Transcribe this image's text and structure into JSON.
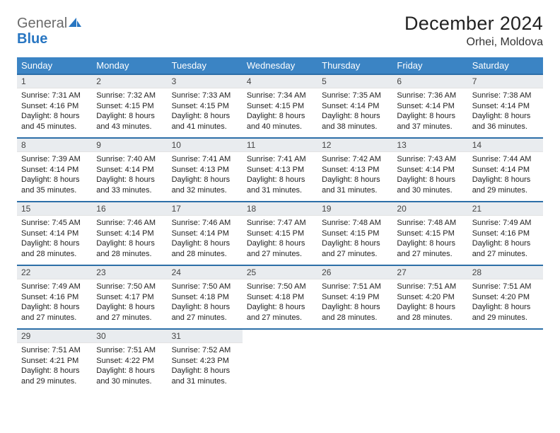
{
  "brand": {
    "line1": "General",
    "line2": "Blue"
  },
  "title": "December 2024",
  "location": "Orhei, Moldova",
  "columns": [
    "Sunday",
    "Monday",
    "Tuesday",
    "Wednesday",
    "Thursday",
    "Friday",
    "Saturday"
  ],
  "colors": {
    "header_bg": "#3b84c4",
    "header_border": "#2d6fa8",
    "daynum_bg": "#e9ecef",
    "brand_gray": "#6b6b6b",
    "brand_blue": "#2876c2"
  },
  "days": [
    {
      "n": 1,
      "sunrise": "7:31 AM",
      "sunset": "4:16 PM",
      "daylight": "8 hours and 45 minutes."
    },
    {
      "n": 2,
      "sunrise": "7:32 AM",
      "sunset": "4:15 PM",
      "daylight": "8 hours and 43 minutes."
    },
    {
      "n": 3,
      "sunrise": "7:33 AM",
      "sunset": "4:15 PM",
      "daylight": "8 hours and 41 minutes."
    },
    {
      "n": 4,
      "sunrise": "7:34 AM",
      "sunset": "4:15 PM",
      "daylight": "8 hours and 40 minutes."
    },
    {
      "n": 5,
      "sunrise": "7:35 AM",
      "sunset": "4:14 PM",
      "daylight": "8 hours and 38 minutes."
    },
    {
      "n": 6,
      "sunrise": "7:36 AM",
      "sunset": "4:14 PM",
      "daylight": "8 hours and 37 minutes."
    },
    {
      "n": 7,
      "sunrise": "7:38 AM",
      "sunset": "4:14 PM",
      "daylight": "8 hours and 36 minutes."
    },
    {
      "n": 8,
      "sunrise": "7:39 AM",
      "sunset": "4:14 PM",
      "daylight": "8 hours and 35 minutes."
    },
    {
      "n": 9,
      "sunrise": "7:40 AM",
      "sunset": "4:14 PM",
      "daylight": "8 hours and 33 minutes."
    },
    {
      "n": 10,
      "sunrise": "7:41 AM",
      "sunset": "4:13 PM",
      "daylight": "8 hours and 32 minutes."
    },
    {
      "n": 11,
      "sunrise": "7:41 AM",
      "sunset": "4:13 PM",
      "daylight": "8 hours and 31 minutes."
    },
    {
      "n": 12,
      "sunrise": "7:42 AM",
      "sunset": "4:13 PM",
      "daylight": "8 hours and 31 minutes."
    },
    {
      "n": 13,
      "sunrise": "7:43 AM",
      "sunset": "4:14 PM",
      "daylight": "8 hours and 30 minutes."
    },
    {
      "n": 14,
      "sunrise": "7:44 AM",
      "sunset": "4:14 PM",
      "daylight": "8 hours and 29 minutes."
    },
    {
      "n": 15,
      "sunrise": "7:45 AM",
      "sunset": "4:14 PM",
      "daylight": "8 hours and 28 minutes."
    },
    {
      "n": 16,
      "sunrise": "7:46 AM",
      "sunset": "4:14 PM",
      "daylight": "8 hours and 28 minutes."
    },
    {
      "n": 17,
      "sunrise": "7:46 AM",
      "sunset": "4:14 PM",
      "daylight": "8 hours and 28 minutes."
    },
    {
      "n": 18,
      "sunrise": "7:47 AM",
      "sunset": "4:15 PM",
      "daylight": "8 hours and 27 minutes."
    },
    {
      "n": 19,
      "sunrise": "7:48 AM",
      "sunset": "4:15 PM",
      "daylight": "8 hours and 27 minutes."
    },
    {
      "n": 20,
      "sunrise": "7:48 AM",
      "sunset": "4:15 PM",
      "daylight": "8 hours and 27 minutes."
    },
    {
      "n": 21,
      "sunrise": "7:49 AM",
      "sunset": "4:16 PM",
      "daylight": "8 hours and 27 minutes."
    },
    {
      "n": 22,
      "sunrise": "7:49 AM",
      "sunset": "4:16 PM",
      "daylight": "8 hours and 27 minutes."
    },
    {
      "n": 23,
      "sunrise": "7:50 AM",
      "sunset": "4:17 PM",
      "daylight": "8 hours and 27 minutes."
    },
    {
      "n": 24,
      "sunrise": "7:50 AM",
      "sunset": "4:18 PM",
      "daylight": "8 hours and 27 minutes."
    },
    {
      "n": 25,
      "sunrise": "7:50 AM",
      "sunset": "4:18 PM",
      "daylight": "8 hours and 27 minutes."
    },
    {
      "n": 26,
      "sunrise": "7:51 AM",
      "sunset": "4:19 PM",
      "daylight": "8 hours and 28 minutes."
    },
    {
      "n": 27,
      "sunrise": "7:51 AM",
      "sunset": "4:20 PM",
      "daylight": "8 hours and 28 minutes."
    },
    {
      "n": 28,
      "sunrise": "7:51 AM",
      "sunset": "4:20 PM",
      "daylight": "8 hours and 29 minutes."
    },
    {
      "n": 29,
      "sunrise": "7:51 AM",
      "sunset": "4:21 PM",
      "daylight": "8 hours and 29 minutes."
    },
    {
      "n": 30,
      "sunrise": "7:51 AM",
      "sunset": "4:22 PM",
      "daylight": "8 hours and 30 minutes."
    },
    {
      "n": 31,
      "sunrise": "7:52 AM",
      "sunset": "4:23 PM",
      "daylight": "8 hours and 31 minutes."
    }
  ],
  "labels": {
    "sunrise": "Sunrise:",
    "sunset": "Sunset:",
    "daylight": "Daylight:"
  },
  "layout": {
    "start_offset": 0,
    "rows": 5,
    "cols": 7
  }
}
